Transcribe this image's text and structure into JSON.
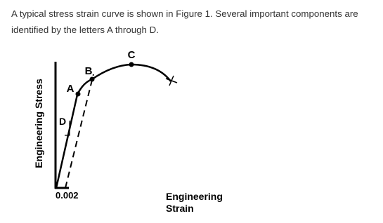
{
  "paragraph": "A typical stress strain curve is shown in Figure 1. Several important components are identified by the letters A through D.",
  "figure": {
    "y_label": "Engineering Stress",
    "x_label": [
      "Engineering",
      "Strain"
    ],
    "offset_label": "0.002",
    "points": [
      "A",
      "B",
      "C",
      "D"
    ]
  }
}
